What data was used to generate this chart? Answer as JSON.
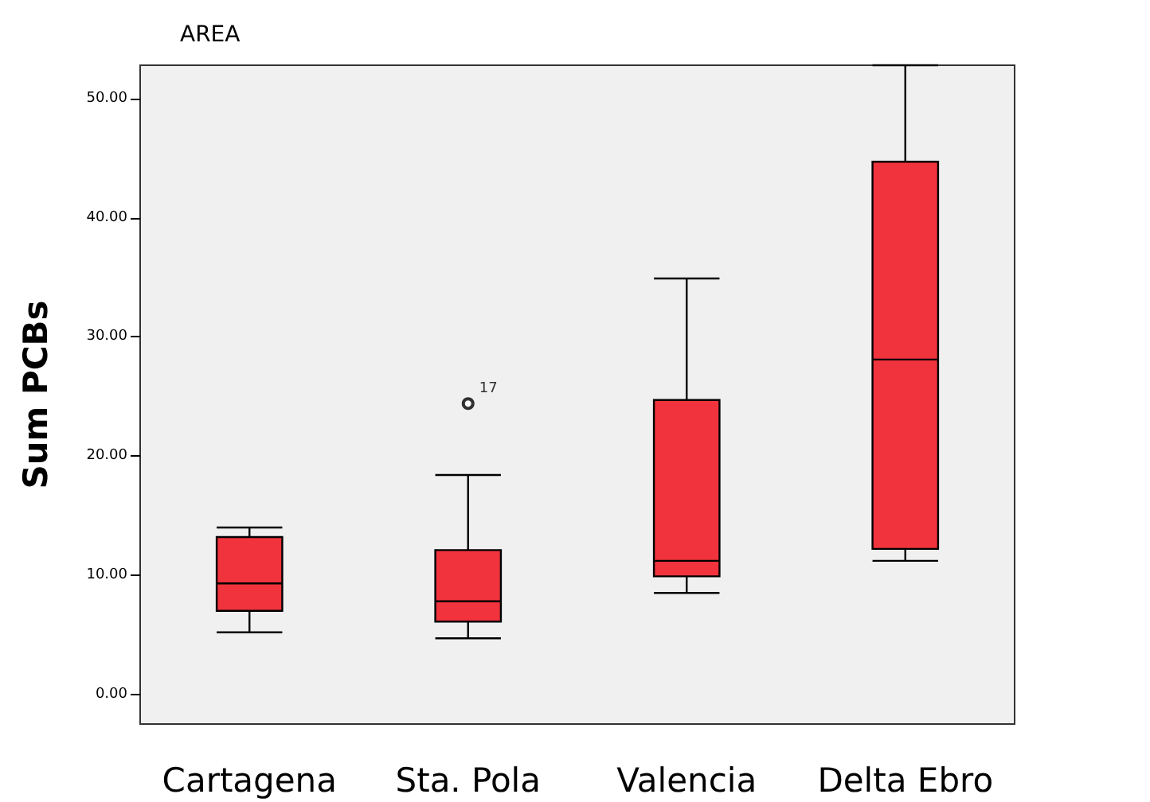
{
  "chart_data": {
    "type": "box",
    "title": "AREA",
    "ylabel": "Sum PCBs",
    "categories": [
      "Cartagena",
      "Sta. Pola",
      "Valencia",
      "Delta Ebro"
    ],
    "boxes": [
      {
        "low": 5.2,
        "q1": 7.0,
        "median": 9.3,
        "q3": 13.2,
        "high": 14.0
      },
      {
        "low": 4.7,
        "q1": 6.1,
        "median": 7.8,
        "q3": 12.1,
        "high": 18.4,
        "outliers": [
          24.4
        ]
      },
      {
        "low": 8.5,
        "q1": 9.9,
        "median": 11.2,
        "q3": 24.7,
        "high": 34.9
      },
      {
        "low": 11.2,
        "q1": 12.2,
        "median": 28.1,
        "q3": 44.7,
        "high": 52.8
      }
    ],
    "color": "#f0333c",
    "ylim": [
      -2.5,
      52.8
    ],
    "yticks": [
      {
        "value": 0,
        "label": "0.00"
      },
      {
        "value": 10,
        "label": "10.00"
      },
      {
        "value": 20,
        "label": "20.00"
      },
      {
        "value": 30,
        "label": "30.00"
      },
      {
        "value": 40,
        "label": "40.00"
      },
      {
        "value": 50,
        "label": "50.00"
      }
    ],
    "annotations": [
      "17"
    ],
    "grid": false
  }
}
